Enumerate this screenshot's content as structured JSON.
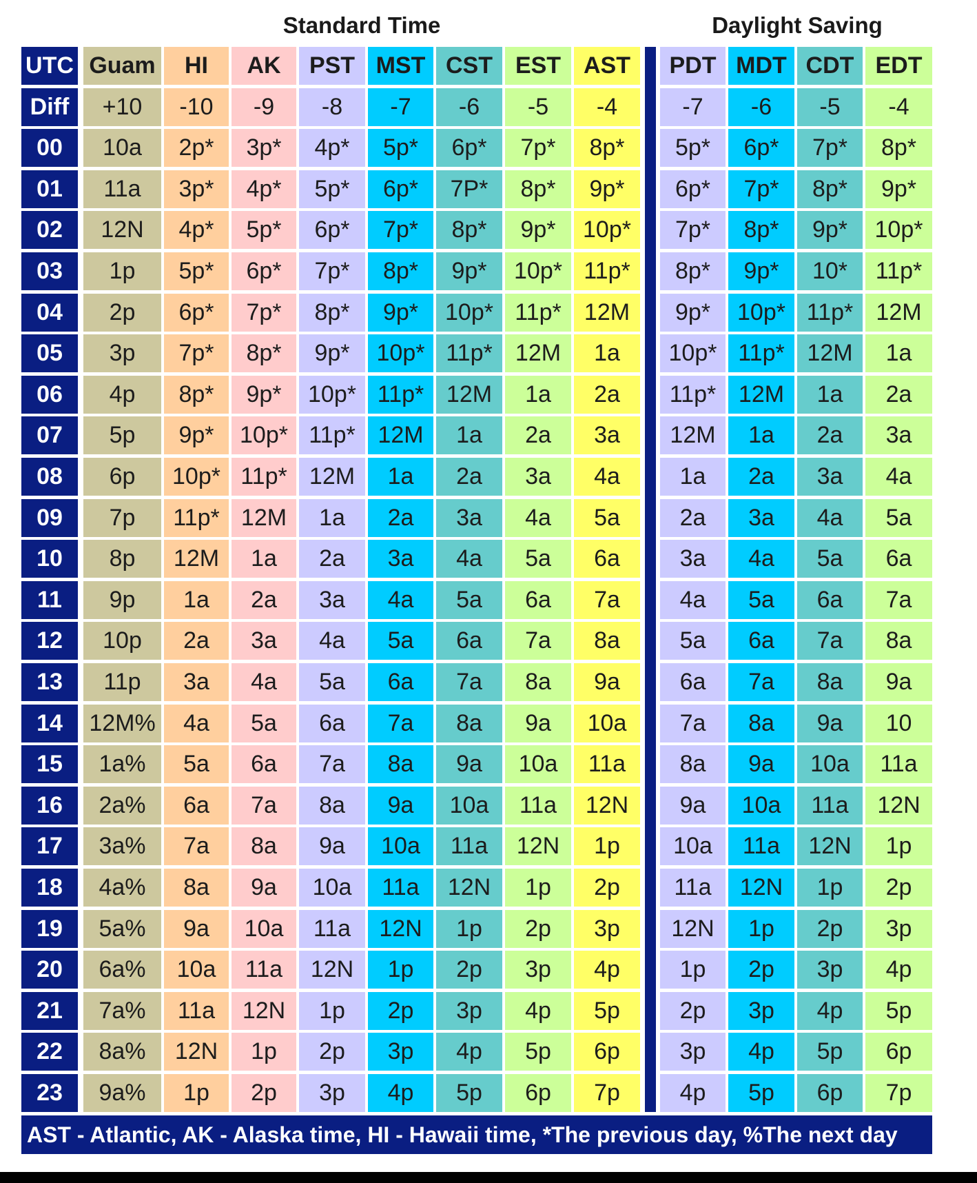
{
  "group_headers": {
    "standard": "Standard Time",
    "daylight": "Daylight Saving"
  },
  "columns": [
    {
      "id": "utc",
      "label": "UTC",
      "diff": "Diff",
      "color": "#0a1e82"
    },
    {
      "id": "guam",
      "label": "Guam",
      "diff": "+10",
      "color": "#cdc89e"
    },
    {
      "id": "hi",
      "label": "HI",
      "diff": "-10",
      "color": "#ffcf9e"
    },
    {
      "id": "ak",
      "label": "AK",
      "diff": "-9",
      "color": "#ffcccc"
    },
    {
      "id": "pst",
      "label": "PST",
      "diff": "-8",
      "color": "#cccbff"
    },
    {
      "id": "mst",
      "label": "MST",
      "diff": "-7",
      "color": "#00ccff"
    },
    {
      "id": "cst",
      "label": "CST",
      "diff": "-6",
      "color": "#66cccc"
    },
    {
      "id": "est",
      "label": "EST",
      "diff": "-5",
      "color": "#ccff99"
    },
    {
      "id": "ast",
      "label": "AST",
      "diff": "-4",
      "color": "#ffff66"
    },
    {
      "id": "pdt",
      "label": "PDT",
      "diff": "-7",
      "color": "#cccbff"
    },
    {
      "id": "mdt",
      "label": "MDT",
      "diff": "-6",
      "color": "#00ccff"
    },
    {
      "id": "cdt",
      "label": "CDT",
      "diff": "-5",
      "color": "#66cccc"
    },
    {
      "id": "edt",
      "label": "EDT",
      "diff": "-4",
      "color": "#ccff99"
    }
  ],
  "rows": [
    [
      "00",
      "10a",
      "2p*",
      "3p*",
      "4p*",
      "5p*",
      "6p*",
      "7p*",
      "8p*",
      "5p*",
      "6p*",
      "7p*",
      "8p*"
    ],
    [
      "01",
      "11a",
      "3p*",
      "4p*",
      "5p*",
      "6p*",
      "7P*",
      "8p*",
      "9p*",
      "6p*",
      "7p*",
      "8p*",
      "9p*"
    ],
    [
      "02",
      "12N",
      "4p*",
      "5p*",
      "6p*",
      "7p*",
      "8p*",
      "9p*",
      "10p*",
      "7p*",
      "8p*",
      "9p*",
      "10p*"
    ],
    [
      "03",
      "1p",
      "5p*",
      "6p*",
      "7p*",
      "8p*",
      "9p*",
      "10p*",
      "11p*",
      "8p*",
      "9p*",
      "10*",
      "11p*"
    ],
    [
      "04",
      "2p",
      "6p*",
      "7p*",
      "8p*",
      "9p*",
      "10p*",
      "11p*",
      "12M",
      "9p*",
      "10p*",
      "11p*",
      "12M"
    ],
    [
      "05",
      "3p",
      "7p*",
      "8p*",
      "9p*",
      "10p*",
      "11p*",
      "12M",
      "1a",
      "10p*",
      "11p*",
      "12M",
      "1a"
    ],
    [
      "06",
      "4p",
      "8p*",
      "9p*",
      "10p*",
      "11p*",
      "12M",
      "1a",
      "2a",
      "11p*",
      "12M",
      "1a",
      "2a"
    ],
    [
      "07",
      "5p",
      "9p*",
      "10p*",
      "11p*",
      "12M",
      "1a",
      "2a",
      "3a",
      "12M",
      "1a",
      "2a",
      "3a"
    ],
    [
      "08",
      "6p",
      "10p*",
      "11p*",
      "12M",
      "1a",
      "2a",
      "3a",
      "4a",
      "1a",
      "2a",
      "3a",
      "4a"
    ],
    [
      "09",
      "7p",
      "11p*",
      "12M",
      "1a",
      "2a",
      "3a",
      "4a",
      "5a",
      "2a",
      "3a",
      "4a",
      "5a"
    ],
    [
      "10",
      "8p",
      "12M",
      "1a",
      "2a",
      "3a",
      "4a",
      "5a",
      "6a",
      "3a",
      "4a",
      "5a",
      "6a"
    ],
    [
      "11",
      "9p",
      "1a",
      "2a",
      "3a",
      "4a",
      "5a",
      "6a",
      "7a",
      "4a",
      "5a",
      "6a",
      "7a"
    ],
    [
      "12",
      "10p",
      "2a",
      "3a",
      "4a",
      "5a",
      "6a",
      "7a",
      "8a",
      "5a",
      "6a",
      "7a",
      "8a"
    ],
    [
      "13",
      "11p",
      "3a",
      "4a",
      "5a",
      "6a",
      "7a",
      "8a",
      "9a",
      "6a",
      "7a",
      "8a",
      "9a"
    ],
    [
      "14",
      "12M%",
      "4a",
      "5a",
      "6a",
      "7a",
      "8a",
      "9a",
      "10a",
      "7a",
      "8a",
      "9a",
      "10"
    ],
    [
      "15",
      "1a%",
      "5a",
      "6a",
      "7a",
      "8a",
      "9a",
      "10a",
      "11a",
      "8a",
      "9a",
      "10a",
      "11a"
    ],
    [
      "16",
      "2a%",
      "6a",
      "7a",
      "8a",
      "9a",
      "10a",
      "11a",
      "12N",
      "9a",
      "10a",
      "11a",
      "12N"
    ],
    [
      "17",
      "3a%",
      "7a",
      "8a",
      "9a",
      "10a",
      "11a",
      "12N",
      "1p",
      "10a",
      "11a",
      "12N",
      "1p"
    ],
    [
      "18",
      "4a%",
      "8a",
      "9a",
      "10a",
      "11a",
      "12N",
      "1p",
      "2p",
      "11a",
      "12N",
      "1p",
      "2p"
    ],
    [
      "19",
      "5a%",
      "9a",
      "10a",
      "11a",
      "12N",
      "1p",
      "2p",
      "3p",
      "12N",
      "1p",
      "2p",
      "3p"
    ],
    [
      "20",
      "6a%",
      "10a",
      "11a",
      "12N",
      "1p",
      "2p",
      "3p",
      "4p",
      "1p",
      "2p",
      "3p",
      "4p"
    ],
    [
      "21",
      "7a%",
      "11a",
      "12N",
      "1p",
      "2p",
      "3p",
      "4p",
      "5p",
      "2p",
      "3p",
      "4p",
      "5p"
    ],
    [
      "22",
      "8a%",
      "12N",
      "1p",
      "2p",
      "3p",
      "4p",
      "5p",
      "6p",
      "3p",
      "4p",
      "5p",
      "6p"
    ],
    [
      "23",
      "9a%",
      "1p",
      "2p",
      "3p",
      "4p",
      "5p",
      "6p",
      "7p",
      "4p",
      "5p",
      "6p",
      "7p"
    ]
  ],
  "footer": "AST - Atlantic, AK - Alaska time, HI - Hawaii time, *The previous day, %The next day"
}
